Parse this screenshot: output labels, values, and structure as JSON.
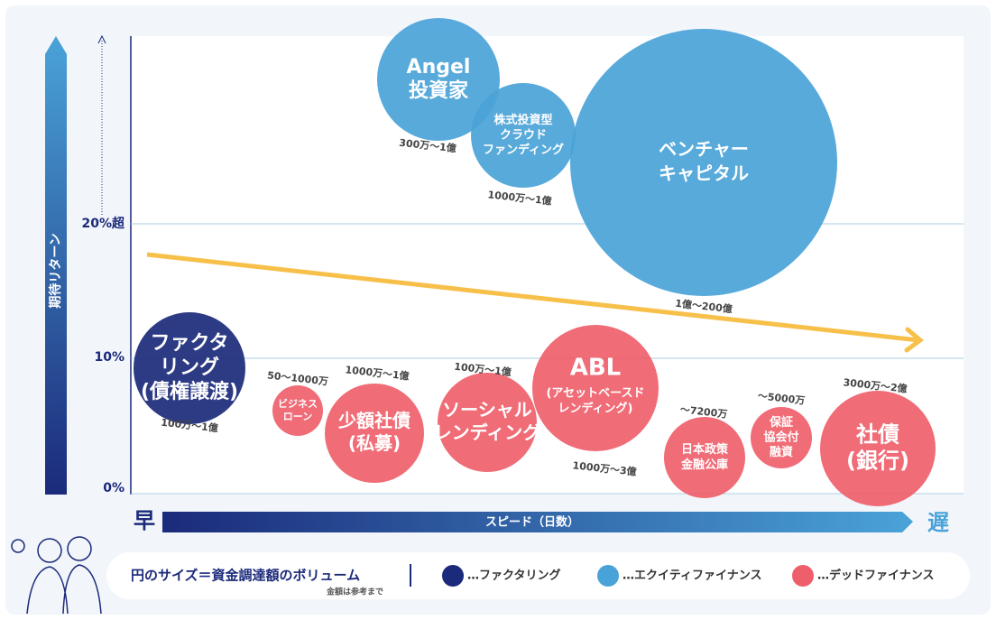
{
  "axis": {
    "y_title": "期待リターン",
    "y_ticks": [
      "0%",
      "10%",
      "20%超"
    ],
    "x_title": "スピード（日数）",
    "x_start": "早",
    "x_end": "遅"
  },
  "bubbles": [
    {
      "lines": [
        "Angel",
        "投資家"
      ],
      "range": "300万～1億",
      "color": "#4aa3d8"
    },
    {
      "lines": [
        "株式投資型",
        "クラウド",
        "ファンディング"
      ],
      "range": "1000万～1億",
      "color": "#4aa3d8"
    },
    {
      "lines": [
        "ベンチャー",
        "キャピタル"
      ],
      "range": "1億～200億",
      "color": "#4aa3d8"
    },
    {
      "lines": [
        "ファクタ",
        "リング",
        "(債権譲渡)"
      ],
      "range": "100万～1億",
      "color": "#1b2a7a"
    },
    {
      "lines": [
        "ビジネス",
        "ローン"
      ],
      "range": "50～1000万",
      "color": "#ef5f6b"
    },
    {
      "lines": [
        "少額社債",
        "(私募)"
      ],
      "range": "1000万～1億",
      "color": "#ef5f6b"
    },
    {
      "lines": [
        "ソーシャル",
        "レンディング"
      ],
      "range": "100万～1億",
      "color": "#ef5f6b"
    },
    {
      "lines": [
        "ABL",
        "(アセットベースド",
        "レンディング)"
      ],
      "range": "1000万～3億",
      "color": "#ef5f6b"
    },
    {
      "lines": [
        "日本政策",
        "金融公庫"
      ],
      "range": "～7200万",
      "color": "#ef5f6b"
    },
    {
      "lines": [
        "保証",
        "協会付",
        "融資"
      ],
      "range": "～5000万",
      "color": "#ef5f6b"
    },
    {
      "lines": [
        "社債",
        "(銀行)"
      ],
      "range": "3000万～2億",
      "color": "#ef5f6b"
    }
  ],
  "legend": {
    "title": "円のサイズ＝資金調達額のボリューム",
    "note": "金額は参考まで",
    "items": [
      {
        "label": "…ファクタリング",
        "color": "#1b2a7a"
      },
      {
        "label": "…エクイティファイナンス",
        "color": "#4aa3d8"
      },
      {
        "label": "…デッドファイナンス",
        "color": "#ef5f6b"
      }
    ]
  }
}
